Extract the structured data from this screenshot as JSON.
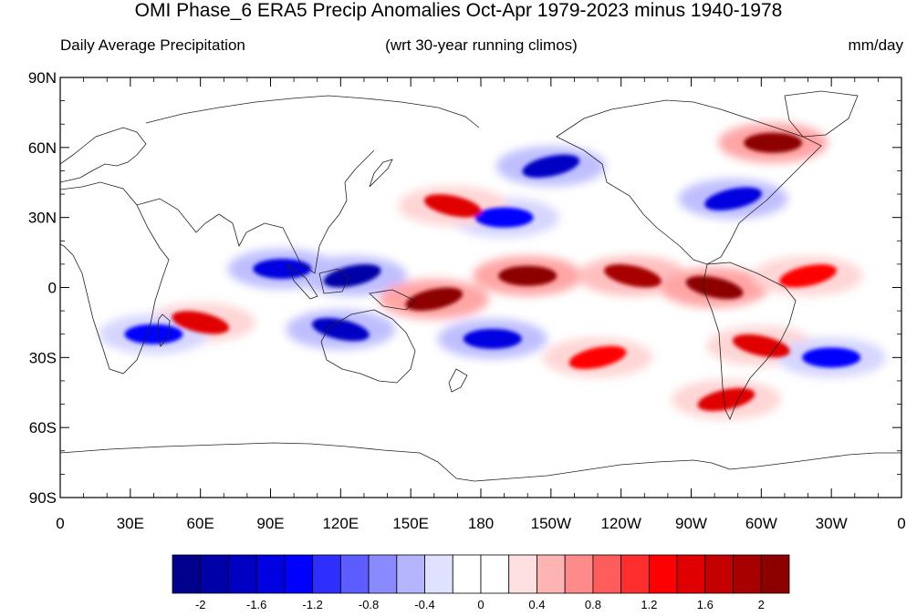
{
  "title": "OMI Phase_6 ERA5 Precip Anomalies Oct-Apr 1979-2023 minus 1940-1978",
  "left_subtitle": "Daily Average Precipitation",
  "center_subtitle": "(wrt 30-year running climos)",
  "right_subtitle": "mm/day",
  "lat_labels": [
    "90N",
    "60N",
    "30N",
    "0",
    "30S",
    "60S",
    "90S"
  ],
  "lon_labels": [
    "0",
    "30E",
    "60E",
    "90E",
    "120E",
    "150E",
    "180",
    "150W",
    "120W",
    "90W",
    "60W",
    "30W",
    "0"
  ],
  "colorbar": {
    "colors": [
      "#00008c",
      "#0000a8",
      "#0000c4",
      "#0000e0",
      "#0000ff",
      "#2e2eff",
      "#5c5cff",
      "#8a8aff",
      "#b4b4ff",
      "#e0e0ff",
      "#ffffff",
      "#ffffff",
      "#ffe0e0",
      "#ffb4b4",
      "#ff8a8a",
      "#ff5c5c",
      "#ff2e2e",
      "#ff0000",
      "#e00000",
      "#c40000",
      "#a80000",
      "#8c0000"
    ],
    "labels": [
      "-2",
      "-1.6",
      "-1.2",
      "-0.8",
      "-0.4",
      "0",
      "0.4",
      "0.8",
      "1.2",
      "1.6",
      "2"
    ]
  },
  "chart_data": {
    "type": "heatmap",
    "title": "OMI Phase_6 ERA5 Precip Anomalies Oct-Apr 1979-2023 minus 1940-1978",
    "units": "mm/day",
    "xlabel": "",
    "ylabel": "",
    "lon_range": [
      0,
      360
    ],
    "lat_range": [
      -90,
      90
    ],
    "color_levels": [
      -2.2,
      -2,
      -1.8,
      -1.6,
      -1.4,
      -1.2,
      -1,
      -0.8,
      -0.6,
      -0.4,
      -0.2,
      0,
      0.2,
      0.4,
      0.6,
      0.8,
      1,
      1.2,
      1.4,
      1.6,
      1.8,
      2,
      2.2
    ],
    "anomaly_features": [
      {
        "lon": 125,
        "lat": 5,
        "value": -2.0
      },
      {
        "lon": 95,
        "lat": 8,
        "value": -1.6
      },
      {
        "lon": 120,
        "lat": -18,
        "value": -1.8
      },
      {
        "lon": 160,
        "lat": -5,
        "value": 2.0
      },
      {
        "lon": 200,
        "lat": 5,
        "value": 2.0
      },
      {
        "lon": 245,
        "lat": 5,
        "value": 1.8
      },
      {
        "lon": 210,
        "lat": 52,
        "value": -1.8
      },
      {
        "lon": 190,
        "lat": 30,
        "value": -1.4
      },
      {
        "lon": 168,
        "lat": 35,
        "value": 1.4
      },
      {
        "lon": 288,
        "lat": 38,
        "value": -1.6
      },
      {
        "lon": 305,
        "lat": 62,
        "value": 2.0
      },
      {
        "lon": 60,
        "lat": -15,
        "value": 1.4
      },
      {
        "lon": 230,
        "lat": -30,
        "value": 1.2
      },
      {
        "lon": 185,
        "lat": -22,
        "value": -1.6
      },
      {
        "lon": 300,
        "lat": -25,
        "value": 1.4
      },
      {
        "lon": 285,
        "lat": -48,
        "value": 1.4
      },
      {
        "lon": 40,
        "lat": -20,
        "value": -1.4
      },
      {
        "lon": 280,
        "lat": 0,
        "value": 2.0
      },
      {
        "lon": 320,
        "lat": 5,
        "value": 1.2
      },
      {
        "lon": 330,
        "lat": -30,
        "value": -1.4
      }
    ]
  }
}
